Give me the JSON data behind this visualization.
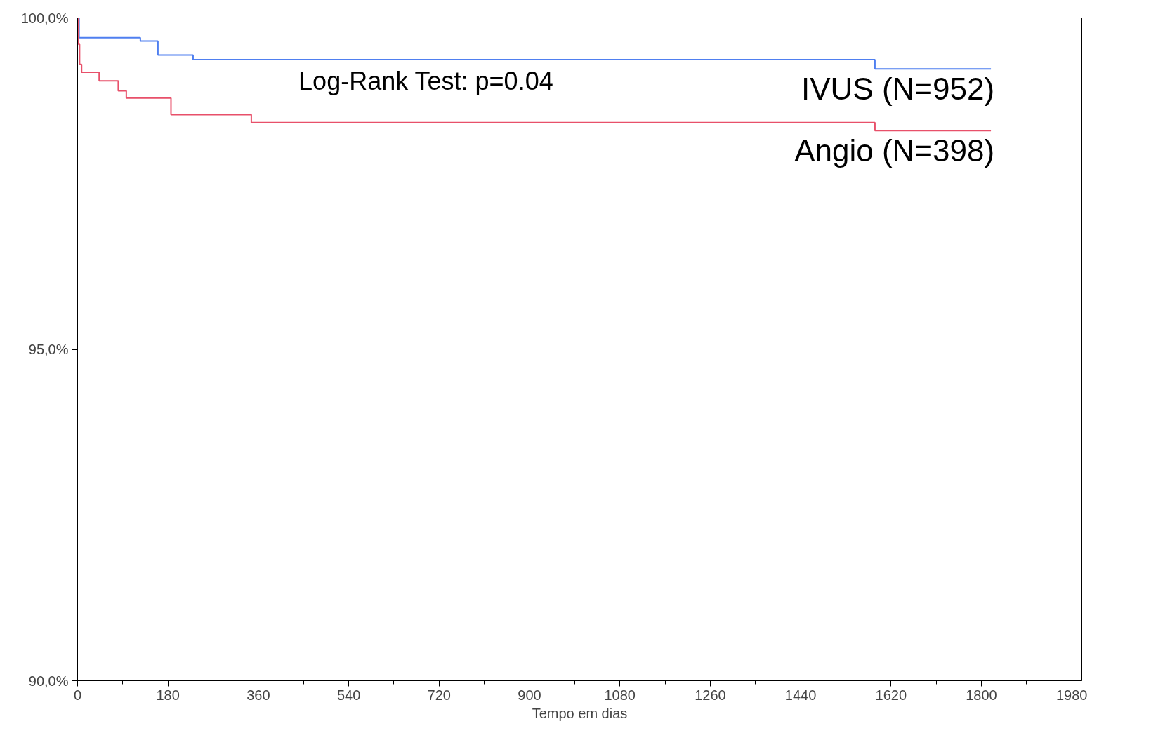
{
  "chart_data": {
    "type": "step",
    "xlabel": "Tempo em dias",
    "annotations": [
      "Log-Rank Test: p=0.04"
    ],
    "xlim": [
      0,
      2000
    ],
    "ylim": [
      90,
      100
    ],
    "xticks": [
      0,
      {
        "value": 90,
        "label": null
      },
      180,
      {
        "value": 270,
        "label": null
      },
      360,
      {
        "value": 450,
        "label": null
      },
      540,
      {
        "value": 630,
        "label": null
      },
      720,
      {
        "value": 810,
        "label": null
      },
      900,
      {
        "value": 990,
        "label": null
      },
      1080,
      {
        "value": 1170,
        "label": null
      },
      1260,
      {
        "value": 1350,
        "label": null
      },
      1440,
      {
        "value": 1530,
        "label": null
      },
      1620,
      {
        "value": 1710,
        "label": null
      },
      1800,
      {
        "value": 1890,
        "label": null
      },
      1980
    ],
    "yticks": [
      {
        "value": 90,
        "label": "90,0%"
      },
      {
        "value": 95,
        "label": "95,0%"
      },
      {
        "value": 100,
        "label": "100,0%"
      }
    ],
    "grid": false,
    "marker": "none",
    "line_style": "solid",
    "series": [
      {
        "name": "IVUS (N=952)",
        "color": "#4f7ff0",
        "x": [
          0,
          3,
          125,
          160,
          230,
          1588,
          1819
        ],
        "values": [
          100,
          99.7,
          99.65,
          99.44,
          99.37,
          99.23,
          99.23
        ]
      },
      {
        "name": "Angio (N=398)",
        "color": "#e8506a",
        "x": [
          0,
          2,
          4,
          8,
          43,
          81,
          97,
          186,
          346,
          1588,
          1819
        ],
        "values": [
          100,
          99.6,
          99.3,
          99.18,
          99.05,
          98.9,
          98.79,
          98.54,
          98.42,
          98.3,
          98.3
        ]
      }
    ]
  }
}
